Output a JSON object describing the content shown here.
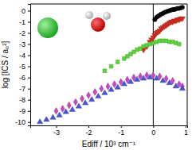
{
  "chart_data": {
    "type": "scatter",
    "x_label": "Ediff / 10³ cm⁻¹",
    "y_label": "log [ICS / a₀²]",
    "xlim": [
      -3.8,
      1.05
    ],
    "ylim": [
      -10.3,
      0.6
    ],
    "xticks": [
      -3,
      -2,
      -1,
      0,
      1
    ],
    "yticks": [
      -10,
      -9,
      -8,
      -7,
      -6,
      -5,
      -4,
      -3,
      -2,
      -1,
      0
    ],
    "vline_x": 0,
    "series": [
      {
        "color": "#000000",
        "marker": "circle",
        "x": [
          0.05,
          0.1,
          0.15,
          0.2,
          0.25,
          0.3,
          0.35,
          0.4,
          0.45,
          0.5,
          0.55,
          0.6,
          0.65,
          0.7,
          0.75,
          0.8,
          0.85,
          0.9
        ],
        "values": [
          -0.8,
          -0.6,
          -0.5,
          -0.4,
          -0.3,
          -0.25,
          -0.15,
          -0.1,
          -0.05,
          0,
          0.05,
          0.1,
          0.1,
          0.15,
          0.2,
          0.2,
          0.25,
          0.3
        ]
      },
      {
        "color": "#d42a1e",
        "marker": "triangle-down",
        "x": [
          -0.3,
          -0.2,
          -0.1,
          -0.05,
          0,
          0.05,
          0.1,
          0.15,
          0.2,
          0.25,
          0.3,
          0.35,
          0.4,
          0.45,
          0.5,
          0.55,
          0.6,
          0.65,
          0.7,
          0.75,
          0.8,
          0.85,
          0.9
        ],
        "values": [
          -3.5,
          -3.2,
          -2.8,
          -2.6,
          -2.4,
          -2.2,
          -2.0,
          -1.9,
          -1.8,
          -1.6,
          -1.5,
          -1.4,
          -1.3,
          -1.2,
          -1.1,
          -1.0,
          -1.0,
          -0.9,
          -0.9,
          -0.8,
          -0.8,
          -0.7,
          -0.7
        ]
      },
      {
        "color": "#5cd63c",
        "marker": "square",
        "x": [
          -1.5,
          -1.3,
          -1.1,
          -0.9,
          -0.8,
          -0.7,
          -0.6,
          -0.5,
          -0.4,
          -0.3,
          -0.2,
          -0.1,
          0,
          0.1,
          0.2,
          0.3,
          0.4,
          0.5,
          0.6,
          0.7,
          0.8
        ],
        "values": [
          -5.4,
          -5.0,
          -4.6,
          -4.3,
          -4.1,
          -3.9,
          -3.7,
          -3.5,
          -3.4,
          -3.2,
          -3.1,
          -3.0,
          -2.9,
          -2.8,
          -2.7,
          -2.7,
          -2.7,
          -2.8,
          -2.8,
          -2.9,
          -3.0
        ]
      },
      {
        "color": "#c846c8",
        "marker": "diamond",
        "x": [
          -3.0,
          -2.8,
          -2.6,
          -2.4,
          -2.2,
          -2.0,
          -1.8,
          -1.6,
          -1.4,
          -1.2,
          -1.0,
          -0.8,
          -0.6,
          -0.4,
          -0.2,
          0,
          0.2,
          0.4,
          0.6,
          0.8,
          0.9
        ],
        "values": [
          -9.0,
          -8.8,
          -8.5,
          -8.2,
          -7.9,
          -7.6,
          -7.3,
          -7.0,
          -6.8,
          -6.6,
          -6.4,
          -6.2,
          -6.0,
          -5.9,
          -5.8,
          -5.8,
          -5.9,
          -6.1,
          -6.3,
          -6.6,
          -6.8
        ]
      },
      {
        "color": "#4a55d6",
        "marker": "triangle",
        "x": [
          -3.5,
          -3.3,
          -3.1,
          -2.9,
          -2.7,
          -2.5,
          -2.3,
          -2.1,
          -1.9,
          -1.7,
          -1.5,
          -1.3,
          -1.1,
          -0.9,
          -0.7,
          -0.5,
          -0.3,
          -0.1,
          0.1,
          0.3,
          0.5,
          0.7,
          0.9
        ],
        "values": [
          -10.0,
          -9.8,
          -9.6,
          -9.4,
          -9.1,
          -8.9,
          -8.6,
          -8.3,
          -8.0,
          -7.7,
          -7.4,
          -7.1,
          -6.9,
          -6.6,
          -6.4,
          -6.2,
          -6.1,
          -6.0,
          -6.1,
          -6.3,
          -6.5,
          -6.8,
          -7.0
        ]
      }
    ]
  }
}
